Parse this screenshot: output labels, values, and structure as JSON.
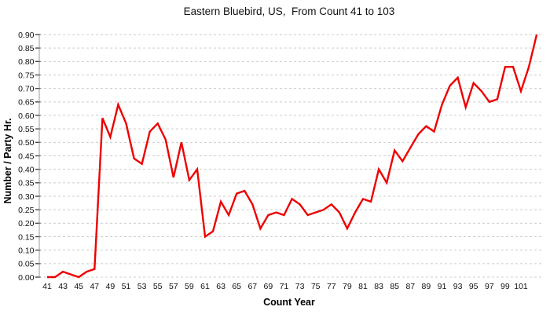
{
  "title": "Eastern Bluebird, US,  From Count 41 to 103",
  "chart_data": {
    "type": "line",
    "title": "Eastern Bluebird, US,  From Count 41 to 103",
    "xlabel": "Count Year",
    "ylabel": "Number / Party Hr.",
    "x_start": 41,
    "x_end": 103,
    "x": [
      41,
      42,
      43,
      44,
      45,
      46,
      47,
      48,
      49,
      50,
      51,
      52,
      53,
      54,
      55,
      56,
      57,
      58,
      59,
      60,
      61,
      62,
      63,
      64,
      65,
      66,
      67,
      68,
      69,
      70,
      71,
      72,
      73,
      74,
      75,
      76,
      77,
      78,
      79,
      80,
      81,
      82,
      83,
      84,
      85,
      86,
      87,
      88,
      89,
      90,
      91,
      92,
      93,
      94,
      95,
      96,
      97,
      98,
      99,
      100,
      101,
      102,
      103
    ],
    "values": [
      0.0,
      0.0,
      0.02,
      0.01,
      0.0,
      0.02,
      0.03,
      0.59,
      0.52,
      0.64,
      0.57,
      0.44,
      0.42,
      0.54,
      0.57,
      0.51,
      0.37,
      0.5,
      0.36,
      0.4,
      0.15,
      0.17,
      0.28,
      0.23,
      0.31,
      0.32,
      0.27,
      0.18,
      0.23,
      0.24,
      0.23,
      0.29,
      0.27,
      0.23,
      0.24,
      0.25,
      0.27,
      0.24,
      0.18,
      0.24,
      0.29,
      0.28,
      0.4,
      0.35,
      0.47,
      0.43,
      0.48,
      0.53,
      0.56,
      0.54,
      0.64,
      0.71,
      0.74,
      0.63,
      0.72,
      0.69,
      0.65,
      0.66,
      0.78,
      0.78,
      0.69,
      0.78,
      0.9
    ],
    "x_tick_labels": [
      "41",
      "43",
      "45",
      "47",
      "49",
      "51",
      "53",
      "55",
      "57",
      "59",
      "61",
      "63",
      "65",
      "67",
      "69",
      "71",
      "73",
      "75",
      "77",
      "79",
      "81",
      "83",
      "85",
      "87",
      "89",
      "91",
      "93",
      "95",
      "97",
      "99",
      "101"
    ],
    "y_tick_labels": [
      "0.00",
      "0.05",
      "0.10",
      "0.15",
      "0.20",
      "0.25",
      "0.30",
      "0.35",
      "0.40",
      "0.45",
      "0.50",
      "0.55",
      "0.60",
      "0.65",
      "0.70",
      "0.75",
      "0.80",
      "0.85",
      "0.90"
    ],
    "ylim": [
      0.0,
      0.9
    ],
    "y_tick_step": 0.05,
    "grid": "horizontal-dashed",
    "legend": "none",
    "line_color": "#ee0000",
    "grid_color": "#cccccc",
    "axis_line_color": "#999999",
    "tick_mark_color": "#444444",
    "text_color": "#111111"
  }
}
